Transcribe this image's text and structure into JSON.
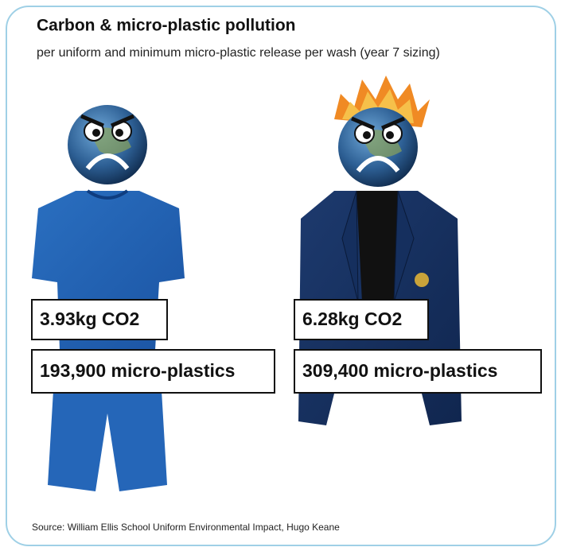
{
  "title": "Carbon & micro-plastic pollution",
  "subtitle": "per uniform and minimum micro-plastic release per wash (year 7 sizing)",
  "items": [
    {
      "co2": "3.93kg CO2",
      "plastics": "193,900 micro-plastics"
    },
    {
      "co2": "6.28kg CO2",
      "plastics": "309,400 micro-plastics"
    }
  ],
  "source": "Source:  William Ellis School Uniform Environmental Impact, Hugo Keane"
}
